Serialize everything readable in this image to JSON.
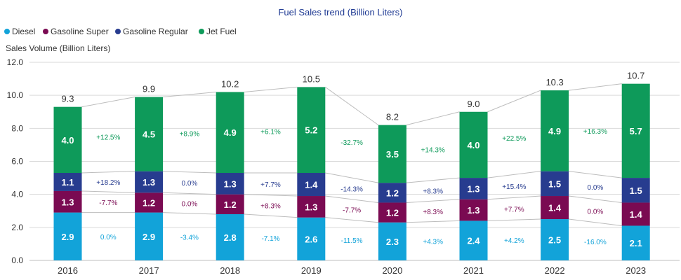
{
  "chart_data": {
    "type": "bar",
    "stacked": true,
    "title": "Fuel Sales trend (Billion Liters)",
    "ylabel": "Sales Volume (Billion Liters)",
    "xlabel": "",
    "ylim": [
      0,
      12
    ],
    "yticks": [
      "0.0",
      "2.0",
      "4.0",
      "6.0",
      "8.0",
      "10.0",
      "12.0"
    ],
    "legend_position": "top-left",
    "grid": true,
    "categories": [
      "2016",
      "2017",
      "2018",
      "2019",
      "2020",
      "2021",
      "2022",
      "2023"
    ],
    "series": [
      {
        "name": "Diesel",
        "color": "#12a3d9",
        "values": [
          2.9,
          2.9,
          2.8,
          2.6,
          2.3,
          2.4,
          2.5,
          2.1
        ],
        "labels": [
          "2.9",
          "2.9",
          "2.8",
          "2.6",
          "2.3",
          "2.4",
          "2.5",
          "2.1"
        ],
        "changes": [
          "0.0%",
          "-3.4%",
          "-7.1%",
          "-11.5%",
          "+4.3%",
          "+4.2%",
          "-16.0%"
        ]
      },
      {
        "name": "Gasoline Super",
        "color": "#7a0a52",
        "values": [
          1.3,
          1.2,
          1.2,
          1.3,
          1.2,
          1.3,
          1.4,
          1.4
        ],
        "labels": [
          "1.3",
          "1.2",
          "1.2",
          "1.3",
          "1.2",
          "1.3",
          "1.4",
          "1.4"
        ],
        "changes": [
          "-7.7%",
          "0.0%",
          "+8.3%",
          "-7.7%",
          "+8.3%",
          "+7.7%",
          "0.0%"
        ]
      },
      {
        "name": "Gasoline Regular",
        "color": "#273c8f",
        "values": [
          1.1,
          1.3,
          1.3,
          1.4,
          1.2,
          1.3,
          1.5,
          1.5
        ],
        "labels": [
          "1.1",
          "1.3",
          "1.3",
          "1.4",
          "1.2",
          "1.3",
          "1.5",
          "1.5"
        ],
        "changes": [
          "+18.2%",
          "0.0%",
          "+7.7%",
          "-14.3%",
          "+8.3%",
          "+15.4%",
          "0.0%"
        ]
      },
      {
        "name": "Jet Fuel",
        "color": "#0e9a5a",
        "values": [
          4.0,
          4.5,
          4.9,
          5.2,
          3.5,
          4.0,
          4.9,
          5.7
        ],
        "labels": [
          "4.0",
          "4.5",
          "4.9",
          "5.2",
          "3.5",
          "4.0",
          "4.9",
          "5.7"
        ],
        "changes": [
          "+12.5%",
          "+8.9%",
          "+6.1%",
          "-32.7%",
          "+14.3%",
          "+22.5%",
          "+16.3%"
        ]
      }
    ],
    "totals": [
      9.3,
      9.9,
      10.2,
      10.5,
      8.2,
      9.0,
      10.3,
      10.7
    ],
    "total_labels": [
      "9.3",
      "9.9",
      "10.2",
      "10.5",
      "8.2",
      "9.0",
      "10.3",
      "10.7"
    ],
    "pct_colors": [
      "#12a3d9",
      "#7a0a52",
      "#273c8f",
      "#0e9a5a"
    ]
  }
}
